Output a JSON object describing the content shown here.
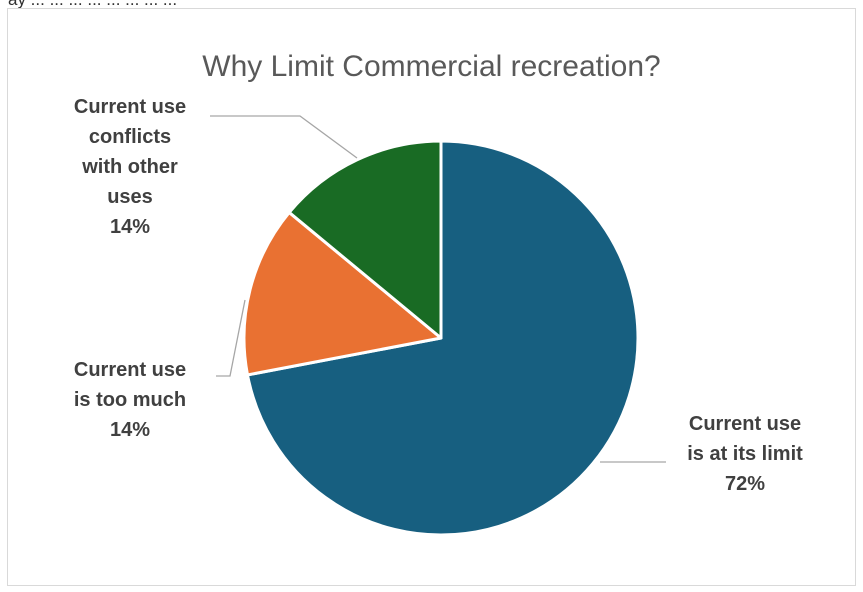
{
  "header_fragment": "ay ... ... ... ... ... ... ... ...",
  "chart_data": {
    "type": "pie",
    "title": "Why Limit Commercial recreation?",
    "start_angle_deg": 0,
    "direction": "clockwise",
    "slices": [
      {
        "label_lines": [
          "Current use",
          "is at its limit"
        ],
        "percent_label": "72%",
        "value": 72,
        "color": "#175f80"
      },
      {
        "label_lines": [
          "Current use",
          "is too much"
        ],
        "percent_label": "14%",
        "value": 14,
        "color": "#e97132"
      },
      {
        "label_lines": [
          "Current use",
          "conflicts",
          "with other",
          "uses"
        ],
        "percent_label": "14%",
        "value": 14,
        "color": "#196b24"
      }
    ],
    "legend": "none",
    "data_labels": "outside with leader lines"
  }
}
